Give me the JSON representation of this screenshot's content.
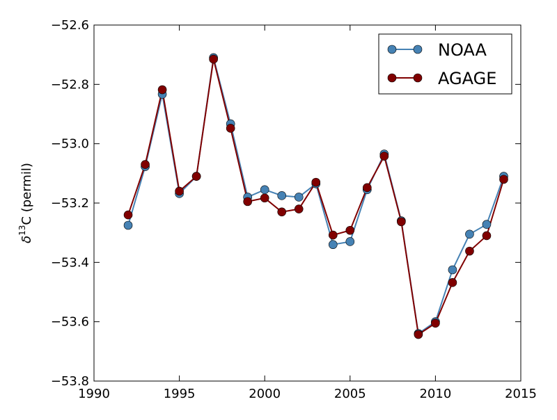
{
  "chart_data": {
    "type": "line",
    "title": "",
    "xlabel": "",
    "ylabel": "δ¹³C (permil)",
    "ylabel_parts": {
      "symbol": "δ",
      "superscript": "13",
      "rest": "C (permil)"
    },
    "xlim": [
      1990,
      2015
    ],
    "ylim": [
      -53.8,
      -52.6
    ],
    "xticks": [
      1990,
      1995,
      2000,
      2005,
      2010,
      2015
    ],
    "xtick_labels": [
      "1990",
      "1995",
      "2000",
      "2005",
      "2010",
      "2015"
    ],
    "yticks": [
      -53.8,
      -53.6,
      -53.4,
      -53.2,
      -53.0,
      -52.8,
      -52.6
    ],
    "ytick_labels": [
      "−53.8",
      "−53.6",
      "−53.4",
      "−53.2",
      "−53.0",
      "−52.8",
      "−52.6"
    ],
    "grid": false,
    "legend_position": "top-right",
    "x": [
      1992,
      1993,
      1994,
      1995,
      1996,
      1997,
      1998,
      1999,
      2000,
      2001,
      2002,
      2003,
      2004,
      2005,
      2006,
      2007,
      2008,
      2009,
      2010,
      2011,
      2012,
      2013,
      2014
    ],
    "series": [
      {
        "name": "NOAA",
        "color": "#4682b4",
        "values": [
          -53.275,
          -53.077,
          -52.833,
          -53.168,
          -53.11,
          -52.71,
          -52.933,
          -53.18,
          -53.155,
          -53.175,
          -53.18,
          -53.135,
          -53.34,
          -53.33,
          -53.155,
          -53.035,
          -53.26,
          -53.64,
          -53.6,
          -53.425,
          -53.305,
          -53.272,
          -53.11
        ]
      },
      {
        "name": "AGAGE",
        "color": "#800000",
        "values": [
          -53.24,
          -53.07,
          -52.818,
          -53.16,
          -53.11,
          -52.715,
          -52.948,
          -53.195,
          -53.183,
          -53.23,
          -53.22,
          -53.13,
          -53.308,
          -53.292,
          -53.148,
          -53.042,
          -53.263,
          -53.643,
          -53.605,
          -53.468,
          -53.362,
          -53.31,
          -53.12
        ]
      }
    ]
  }
}
